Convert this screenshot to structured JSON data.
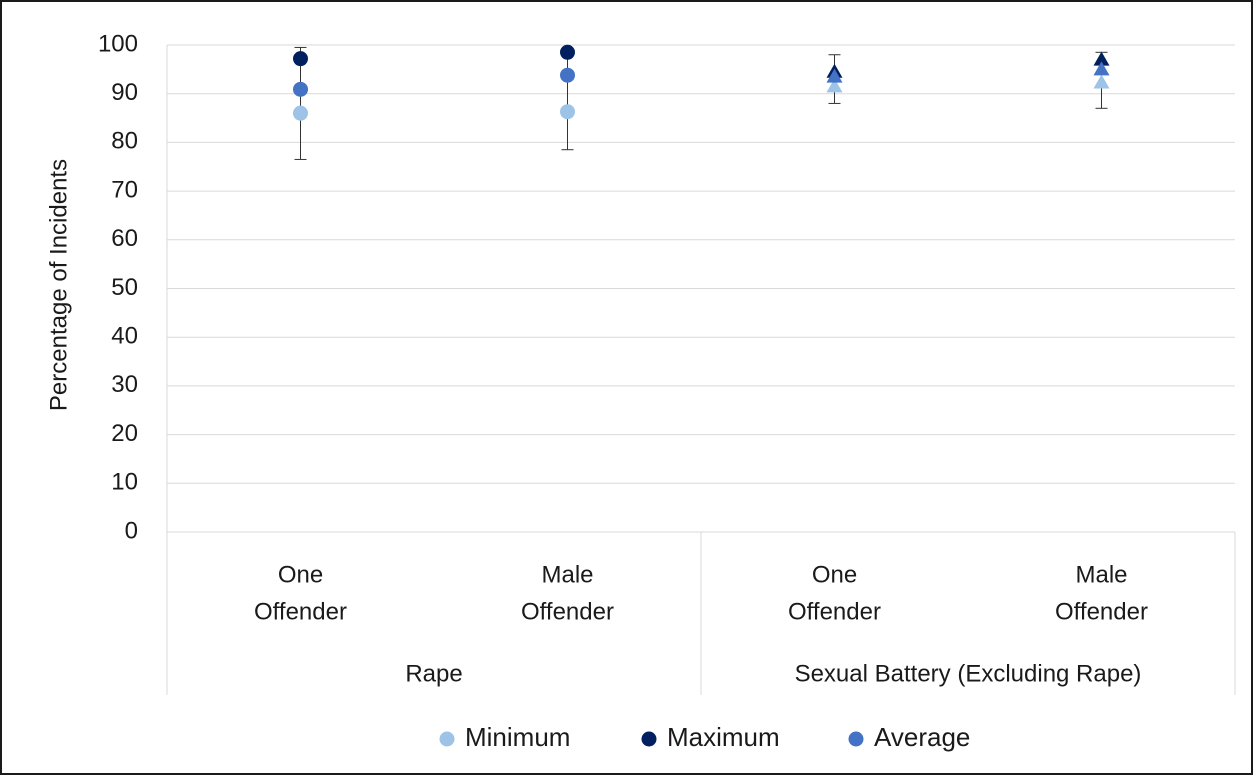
{
  "chart_data": {
    "type": "scatter",
    "ylabel": "Percentage of Incidents",
    "ylim": [
      0,
      100
    ],
    "yticks": [
      0,
      10,
      20,
      30,
      40,
      50,
      60,
      70,
      80,
      90,
      100
    ],
    "grid": true,
    "legend_position": "bottom",
    "groups": [
      {
        "label": "Rape",
        "categories": [
          {
            "label_lines": [
              "One",
              "Offender"
            ],
            "marker": "circle",
            "error": [
              76.5,
              99.5
            ]
          },
          {
            "label_lines": [
              "Male",
              "Offender"
            ],
            "marker": "circle",
            "error": [
              78.5,
              99
            ]
          }
        ]
      },
      {
        "label": "Sexual Battery (Excluding Rape)",
        "categories": [
          {
            "label_lines": [
              "One",
              "Offender"
            ],
            "marker": "triangle",
            "error": [
              88,
              98
            ]
          },
          {
            "label_lines": [
              "Male",
              "Offender"
            ],
            "marker": "triangle",
            "error": [
              87,
              98.5
            ]
          }
        ]
      }
    ],
    "series": [
      {
        "name": "Minimum",
        "color": "#9dc3e6",
        "values": [
          86,
          86.3,
          91.5,
          92.3
        ]
      },
      {
        "name": "Maximum",
        "color": "#002060",
        "values": [
          97.2,
          98.5,
          94.5,
          97
        ]
      },
      {
        "name": "Average",
        "color": "#4472c4",
        "values": [
          90.9,
          93.8,
          93.5,
          95
        ]
      }
    ]
  }
}
